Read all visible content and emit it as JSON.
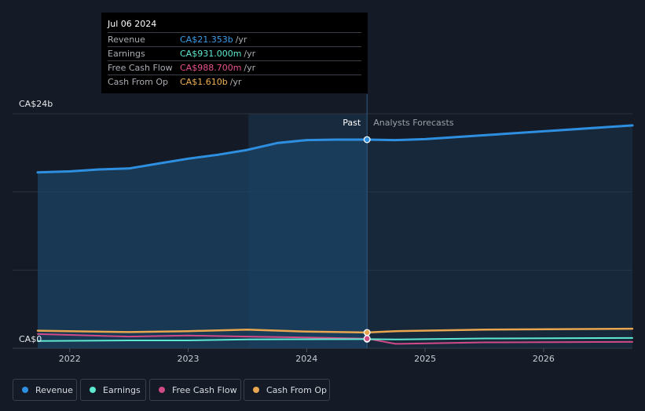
{
  "tooltip": {
    "date": "Jul 06 2024",
    "rows": [
      {
        "label": "Revenue",
        "value": "CA$21.353b",
        "unit": "/yr",
        "color": "#3b9fe8"
      },
      {
        "label": "Earnings",
        "value": "CA$931.000m",
        "unit": "/yr",
        "color": "#5ee8d0"
      },
      {
        "label": "Free Cash Flow",
        "value": "CA$988.700m",
        "unit": "/yr",
        "color": "#e8508c"
      },
      {
        "label": "Cash From Op",
        "value": "CA$1.610b",
        "unit": "/yr",
        "color": "#f0b050"
      }
    ]
  },
  "labels": {
    "past": "Past",
    "forecast": "Analysts Forecasts"
  },
  "legend": [
    {
      "name": "Revenue",
      "color": "#2e8fe0"
    },
    {
      "name": "Earnings",
      "color": "#5ee8d0"
    },
    {
      "name": "Free Cash Flow",
      "color": "#d04a86"
    },
    {
      "name": "Cash From Op",
      "color": "#e8a650"
    }
  ],
  "chart_data": {
    "type": "line",
    "y_tick_labels": [
      "CA$24b",
      "CA$0"
    ],
    "ylim": [
      0,
      24
    ],
    "xlim": [
      2021.73,
      2026.75
    ],
    "x_ticks": [
      "2022",
      "2023",
      "2024",
      "2025",
      "2026"
    ],
    "past_end": 2024.51,
    "highlight_start": 2023.51,
    "series": [
      {
        "name": "Revenue",
        "color": "#2e8fe0",
        "x": [
          2021.73,
          2022.0,
          2022.25,
          2022.5,
          2022.75,
          2023.0,
          2023.25,
          2023.5,
          2023.75,
          2024.0,
          2024.25,
          2024.51,
          2024.75,
          2025.0,
          2025.5,
          2026.0,
          2026.5,
          2026.75
        ],
        "values": [
          18.0,
          18.1,
          18.3,
          18.4,
          18.9,
          19.4,
          19.8,
          20.3,
          21.0,
          21.3,
          21.35,
          21.35,
          21.3,
          21.4,
          21.8,
          22.2,
          22.6,
          22.8
        ]
      },
      {
        "name": "Earnings",
        "color": "#5ee8d0",
        "x": [
          2021.73,
          2022.5,
          2023.0,
          2023.5,
          2024.0,
          2024.51,
          2024.75,
          2025.5,
          2026.75
        ],
        "values": [
          0.75,
          0.8,
          0.8,
          0.9,
          0.92,
          0.93,
          0.9,
          1.0,
          1.05
        ]
      },
      {
        "name": "Free Cash Flow",
        "color": "#d04a86",
        "x": [
          2021.73,
          2022.5,
          2023.0,
          2023.5,
          2024.0,
          2024.51,
          2024.75,
          2025.5,
          2026.75
        ],
        "values": [
          1.45,
          1.2,
          1.3,
          1.2,
          1.1,
          0.99,
          0.45,
          0.6,
          0.65
        ]
      },
      {
        "name": "Cash From Op",
        "color": "#e8a650",
        "x": [
          2021.73,
          2022.5,
          2023.0,
          2023.5,
          2024.0,
          2024.51,
          2024.75,
          2025.5,
          2026.75
        ],
        "values": [
          1.8,
          1.65,
          1.75,
          1.9,
          1.7,
          1.61,
          1.75,
          1.9,
          2.0
        ]
      }
    ]
  }
}
